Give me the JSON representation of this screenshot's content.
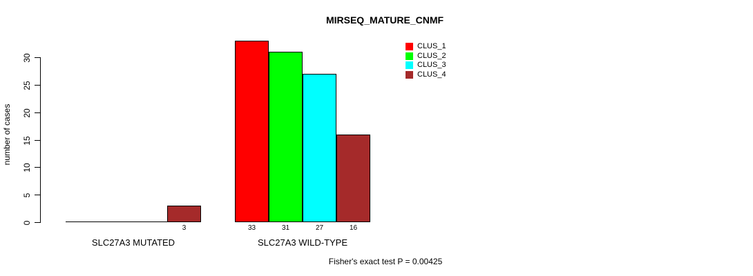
{
  "title": "MIRSEQ_MATURE_CNMF",
  "y_axis": {
    "label": "number of cases",
    "tick_labels": [
      "0",
      "5",
      "10",
      "15",
      "20",
      "25",
      "30"
    ]
  },
  "legend": {
    "items": [
      {
        "label": "CLUS_1",
        "color": "#ff0000"
      },
      {
        "label": "CLUS_2",
        "color": "#00ff00"
      },
      {
        "label": "CLUS_3",
        "color": "#00ffff"
      },
      {
        "label": "CLUS_4",
        "color": "#a52a2a"
      }
    ]
  },
  "footer": {
    "text": "Fisher's exact test P = 0.00425"
  },
  "chart_data": {
    "type": "bar",
    "title": "MIRSEQ_MATURE_CNMF",
    "ylabel": "number of cases",
    "xlabel": "",
    "categories": [
      "SLC27A3 MUTATED",
      "SLC27A3 WILD-TYPE"
    ],
    "series": [
      {
        "name": "CLUS_1",
        "color": "#ff0000",
        "values": [
          0,
          33
        ]
      },
      {
        "name": "CLUS_2",
        "color": "#00ff00",
        "values": [
          0,
          31
        ]
      },
      {
        "name": "CLUS_3",
        "color": "#00ffff",
        "values": [
          0,
          27
        ]
      },
      {
        "name": "CLUS_4",
        "color": "#a52a2a",
        "values": [
          3,
          16
        ]
      }
    ],
    "value_labels": [
      [
        null,
        null,
        null,
        "3"
      ],
      [
        "33",
        "31",
        "27",
        "16"
      ]
    ],
    "yticks": [
      0,
      5,
      10,
      15,
      20,
      25,
      30
    ],
    "ylim": [
      0,
      33
    ],
    "grid": false,
    "legend_position": "top-right",
    "annotation": "Fisher's exact test P = 0.00425"
  }
}
